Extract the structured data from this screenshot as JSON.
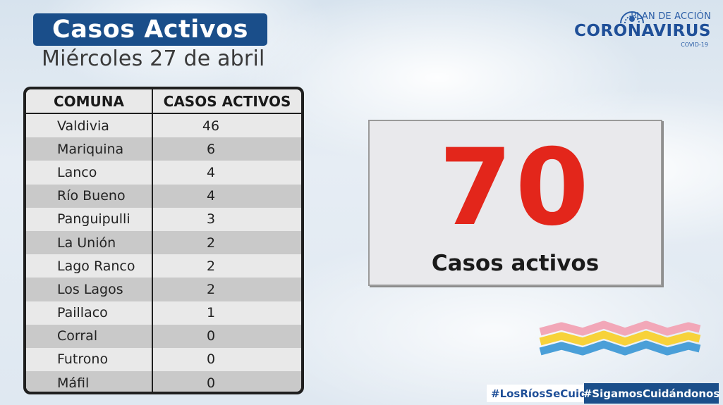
{
  "header": {
    "title": "Casos Activos",
    "date": "Miércoles 27 de abril"
  },
  "logo": {
    "line1": "PLAN DE ACCIÓN",
    "line2": "CORONAVIRUS",
    "line3": "COVID-19"
  },
  "table": {
    "headers": [
      "COMUNA",
      "CASOS ACTIVOS"
    ],
    "rows": [
      {
        "comuna": "Valdivia",
        "casos": "46"
      },
      {
        "comuna": "Mariquina",
        "casos": "6"
      },
      {
        "comuna": "Lanco",
        "casos": "4"
      },
      {
        "comuna": "Río Bueno",
        "casos": "4"
      },
      {
        "comuna": "Panguipulli",
        "casos": "3"
      },
      {
        "comuna": "La Unión",
        "casos": "2"
      },
      {
        "comuna": "Lago Ranco",
        "casos": "2"
      },
      {
        "comuna": "Los Lagos",
        "casos": "2"
      },
      {
        "comuna": "Paillaco",
        "casos": "1"
      },
      {
        "comuna": "Corral",
        "casos": "0"
      },
      {
        "comuna": "Futrono",
        "casos": "0"
      },
      {
        "comuna": "Máfil",
        "casos": "0"
      }
    ]
  },
  "total": {
    "value": "70",
    "label": "Casos activos"
  },
  "hashtags": {
    "primary": "#LosRíosSeCuida",
    "secondary": "#SigamosCuidándonos"
  },
  "colors": {
    "brand_blue": "#1a4e8a",
    "total_red": "#e3261b",
    "stripe_pink": "#f2a7b8",
    "stripe_yellow": "#f7d23a",
    "stripe_blue": "#4a9fd8"
  },
  "icons": [
    "government-shield-icon",
    "wave-stripes-graphic"
  ]
}
